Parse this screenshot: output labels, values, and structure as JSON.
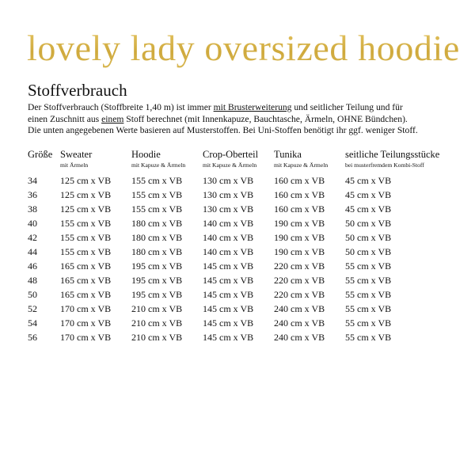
{
  "title": "lovely lady oversized hoodie",
  "colors": {
    "title_gold": "#d6b44c",
    "text": "#111111"
  },
  "heading": "Stoffverbrauch",
  "paragraph": {
    "l1a": "Der Stoffverbrauch (Stoffbreite 1,40 m) ist immer ",
    "l1u": "mit Brusterweiterung",
    "l1b": " und seitlicher Teilung und für",
    "l2a": "einen Zuschnitt aus ",
    "l2u": "einem",
    "l2b": " Stoff berechnet (mit Innenkapuze, Bauchtasche, Ärmeln, OHNE Bündchen).",
    "l3": "Die unten angegebenen Werte basieren auf Musterstoffen. Bei Uni-Stoffen benötigt ihr ggf. weniger Stoff."
  },
  "table": {
    "headers": [
      {
        "label": "Größe",
        "sub": ""
      },
      {
        "label": "Sweater",
        "sub": "mit Ärmeln"
      },
      {
        "label": "Hoodie",
        "sub": "mit Kapuze & Ärmeln"
      },
      {
        "label": "Crop-Oberteil",
        "sub": "mit Kapuze & Ärmeln"
      },
      {
        "label": "Tunika",
        "sub": "mit Kapuze & Ärmeln"
      },
      {
        "label": "seitliche Teilungsstücke",
        "sub": "bei musterfremdem Kombi-Stoff"
      }
    ],
    "rows": [
      [
        "34",
        "125 cm x VB",
        "155 cm x VB",
        "130 cm x VB",
        "160 cm x VB",
        "45 cm x VB"
      ],
      [
        "36",
        "125 cm x VB",
        "155 cm x VB",
        "130 cm x VB",
        "160 cm x VB",
        "45 cm x VB"
      ],
      [
        "38",
        "125 cm x VB",
        "155 cm x VB",
        "130 cm x VB",
        "160 cm x VB",
        "45 cm x VB"
      ],
      [
        "40",
        "155 cm x VB",
        "180 cm x VB",
        "140 cm x VB",
        "190 cm x VB",
        "50 cm x VB"
      ],
      [
        "42",
        "155 cm x VB",
        "180 cm x VB",
        "140 cm x VB",
        "190 cm x VB",
        "50 cm x VB"
      ],
      [
        "44",
        "155 cm x VB",
        "180 cm x VB",
        "140 cm x VB",
        "190 cm x VB",
        "50 cm x VB"
      ],
      [
        "46",
        "165 cm x VB",
        "195 cm x VB",
        "145 cm x VB",
        "220 cm x VB",
        "55 cm x VB"
      ],
      [
        "48",
        "165 cm x VB",
        "195 cm x VB",
        "145 cm x VB",
        "220 cm x VB",
        "55 cm x VB"
      ],
      [
        "50",
        "165 cm x VB",
        "195 cm x VB",
        "145 cm x VB",
        "220 cm x VB",
        "55 cm x VB"
      ],
      [
        "52",
        "170 cm x VB",
        "210 cm x VB",
        "145 cm x VB",
        "240 cm x VB",
        "55 cm x VB"
      ],
      [
        "54",
        "170 cm x VB",
        "210 cm x VB",
        "145 cm x VB",
        "240 cm x VB",
        "55 cm x VB"
      ],
      [
        "56",
        "170 cm x VB",
        "210 cm x VB",
        "145 cm x VB",
        "240 cm x VB",
        "55 cm x VB"
      ]
    ]
  }
}
